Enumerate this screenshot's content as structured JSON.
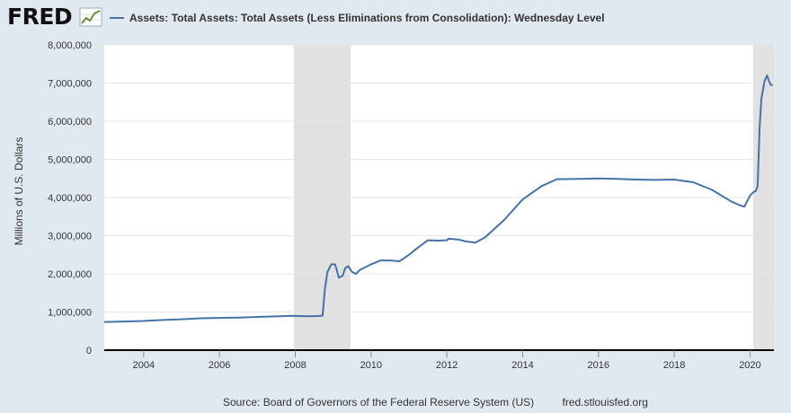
{
  "brand": {
    "name": "FRED"
  },
  "legend": {
    "label": "Assets: Total Assets: Total Assets (Less Eliminations from Consolidation): Wednesday Level"
  },
  "footer": {
    "source": "Source: Board of Governors of the Federal Reserve System (US)",
    "url": "fred.stlouisfed.org"
  },
  "colors": {
    "series": "#4572a7",
    "background": "#e1e9f0",
    "plot": "#ffffff",
    "recession": "#e1e1e1"
  },
  "chart_data": {
    "type": "line",
    "ylabel": "Millions of U.S. Dollars",
    "xlabel": "",
    "xlim": [
      2002.96,
      2020.63
    ],
    "ylim": [
      0,
      8000000
    ],
    "x_ticks": [
      "2004",
      "2006",
      "2008",
      "2010",
      "2012",
      "2014",
      "2016",
      "2018",
      "2020"
    ],
    "y_ticks": [
      "0",
      "1,000,000",
      "2,000,000",
      "3,000,000",
      "4,000,000",
      "5,000,000",
      "6,000,000",
      "7,000,000",
      "8,000,000"
    ],
    "grid": true,
    "legend_position": "top-left",
    "recessions": [
      [
        2007.96,
        2009.46
      ],
      [
        2020.08,
        2020.63
      ]
    ],
    "series": [
      {
        "name": "Assets: Total Assets: Total Assets (Less Eliminations from Consolidation): Wednesday Level",
        "color": "#4572a7",
        "x": [
          2002.96,
          2003.5,
          2004.0,
          2004.5,
          2005.0,
          2005.5,
          2006.0,
          2006.5,
          2007.0,
          2007.5,
          2007.9,
          2008.3,
          2008.6,
          2008.72,
          2008.78,
          2008.85,
          2008.95,
          2009.05,
          2009.15,
          2009.25,
          2009.32,
          2009.4,
          2009.5,
          2009.6,
          2009.7,
          2009.8,
          2009.9,
          2010.0,
          2010.25,
          2010.5,
          2010.75,
          2011.0,
          2011.25,
          2011.5,
          2011.75,
          2012.0,
          2012.05,
          2012.3,
          2012.5,
          2012.75,
          2013.0,
          2013.5,
          2014.0,
          2014.5,
          2014.9,
          2015.5,
          2016.0,
          2016.5,
          2017.0,
          2017.5,
          2018.0,
          2018.5,
          2019.0,
          2019.5,
          2019.72,
          2019.85,
          2020.0,
          2020.1,
          2020.15,
          2020.2,
          2020.25,
          2020.3,
          2020.38,
          2020.45,
          2020.5,
          2020.55,
          2020.6
        ],
        "y": [
          740000,
          750000,
          765000,
          790000,
          810000,
          835000,
          845000,
          855000,
          870000,
          885000,
          900000,
          890000,
          895000,
          905000,
          1600000,
          2050000,
          2250000,
          2250000,
          1900000,
          1950000,
          2150000,
          2200000,
          2050000,
          2000000,
          2100000,
          2150000,
          2200000,
          2250000,
          2350000,
          2350000,
          2330000,
          2500000,
          2700000,
          2880000,
          2870000,
          2880000,
          2920000,
          2900000,
          2850000,
          2820000,
          2950000,
          3400000,
          3950000,
          4300000,
          4480000,
          4490000,
          4500000,
          4490000,
          4470000,
          4460000,
          4470000,
          4400000,
          4200000,
          3900000,
          3800000,
          3760000,
          4050000,
          4150000,
          4170000,
          4300000,
          5800000,
          6600000,
          7050000,
          7200000,
          7050000,
          6950000,
          6950000
        ]
      }
    ]
  }
}
